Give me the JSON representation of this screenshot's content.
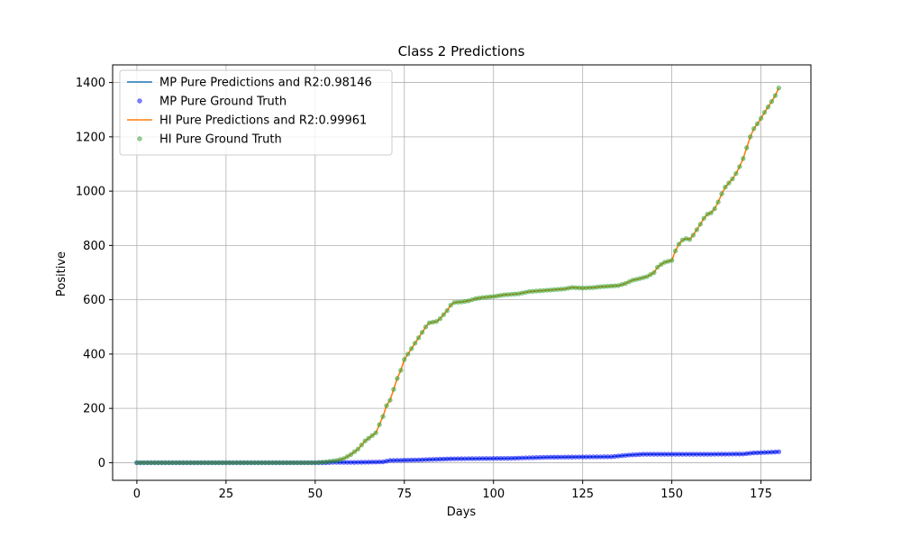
{
  "chart_data": {
    "type": "line",
    "title": "Class 2 Predictions",
    "xlabel": "Days",
    "ylabel": "Positive",
    "xlim": [
      -6.8,
      189
    ],
    "ylim": [
      -65,
      1465
    ],
    "xticks": [
      0,
      25,
      50,
      75,
      100,
      125,
      150,
      175
    ],
    "yticks": [
      0,
      200,
      400,
      600,
      800,
      1000,
      1200,
      1400
    ],
    "grid": true,
    "legend_position": "top-left",
    "series": [
      {
        "name": "MP Pure Predictions and R2:0.98146",
        "kind": "line",
        "color": "#1f77b4",
        "points": [
          [
            0,
            0
          ],
          [
            53,
            0
          ],
          [
            55,
            1
          ],
          [
            60,
            1
          ],
          [
            65,
            2
          ],
          [
            69,
            3
          ],
          [
            71,
            8
          ],
          [
            75,
            9
          ],
          [
            79,
            10
          ],
          [
            83,
            12
          ],
          [
            88,
            14
          ],
          [
            95,
            15
          ],
          [
            105,
            16
          ],
          [
            110,
            18
          ],
          [
            115,
            20
          ],
          [
            125,
            21
          ],
          [
            133,
            22
          ],
          [
            138,
            28
          ],
          [
            142,
            31
          ],
          [
            150,
            31
          ],
          [
            160,
            31
          ],
          [
            170,
            32
          ],
          [
            173,
            36
          ],
          [
            177,
            38
          ],
          [
            180,
            40
          ]
        ]
      },
      {
        "name": "MP Pure Ground Truth",
        "kind": "scatter",
        "color": "#0000ff",
        "points": [
          [
            0,
            0
          ],
          [
            53,
            0
          ],
          [
            55,
            1
          ],
          [
            60,
            1
          ],
          [
            65,
            2
          ],
          [
            69,
            3
          ],
          [
            71,
            8
          ],
          [
            75,
            9
          ],
          [
            79,
            10
          ],
          [
            83,
            12
          ],
          [
            88,
            14
          ],
          [
            95,
            15
          ],
          [
            105,
            16
          ],
          [
            110,
            18
          ],
          [
            115,
            20
          ],
          [
            125,
            21
          ],
          [
            133,
            22
          ],
          [
            138,
            28
          ],
          [
            142,
            31
          ],
          [
            150,
            31
          ],
          [
            160,
            31
          ],
          [
            170,
            32
          ],
          [
            173,
            36
          ],
          [
            177,
            38
          ],
          [
            180,
            40
          ]
        ]
      },
      {
        "name": "HI Pure Predictions and R2:0.99961",
        "kind": "line",
        "color": "#ff7f0e",
        "points": [
          [
            0,
            0
          ],
          [
            50,
            0
          ],
          [
            53,
            3
          ],
          [
            56,
            8
          ],
          [
            58,
            15
          ],
          [
            60,
            30
          ],
          [
            62,
            50
          ],
          [
            64,
            80
          ],
          [
            66,
            100
          ],
          [
            67,
            110
          ],
          [
            68,
            140
          ],
          [
            69,
            170
          ],
          [
            70,
            210
          ],
          [
            71,
            230
          ],
          [
            72,
            270
          ],
          [
            73,
            310
          ],
          [
            74,
            340
          ],
          [
            75,
            380
          ],
          [
            76,
            400
          ],
          [
            77,
            420
          ],
          [
            78,
            440
          ],
          [
            79,
            460
          ],
          [
            80,
            480
          ],
          [
            81,
            500
          ],
          [
            82,
            515
          ],
          [
            84,
            520
          ],
          [
            85,
            530
          ],
          [
            86,
            545
          ],
          [
            87,
            560
          ],
          [
            88,
            580
          ],
          [
            89,
            590
          ],
          [
            91,
            592
          ],
          [
            93,
            596
          ],
          [
            95,
            604
          ],
          [
            97,
            608
          ],
          [
            100,
            612
          ],
          [
            103,
            618
          ],
          [
            107,
            622
          ],
          [
            110,
            630
          ],
          [
            115,
            635
          ],
          [
            120,
            640
          ],
          [
            122,
            645
          ],
          [
            125,
            643
          ],
          [
            128,
            645
          ],
          [
            130,
            648
          ],
          [
            135,
            652
          ],
          [
            137,
            660
          ],
          [
            139,
            672
          ],
          [
            141,
            678
          ],
          [
            143,
            685
          ],
          [
            145,
            700
          ],
          [
            146,
            720
          ],
          [
            147,
            730
          ],
          [
            148,
            738
          ],
          [
            150,
            745
          ],
          [
            151,
            780
          ],
          [
            152,
            805
          ],
          [
            153,
            820
          ],
          [
            154,
            825
          ],
          [
            155,
            822
          ],
          [
            156,
            838
          ],
          [
            157,
            858
          ],
          [
            158,
            878
          ],
          [
            159,
            900
          ],
          [
            160,
            915
          ],
          [
            161,
            920
          ],
          [
            162,
            935
          ],
          [
            163,
            960
          ],
          [
            164,
            990
          ],
          [
            165,
            1015
          ],
          [
            166,
            1030
          ],
          [
            167,
            1045
          ],
          [
            168,
            1065
          ],
          [
            169,
            1090
          ],
          [
            170,
            1120
          ],
          [
            171,
            1160
          ],
          [
            172,
            1200
          ],
          [
            173,
            1230
          ],
          [
            174,
            1248
          ],
          [
            175,
            1268
          ],
          [
            176,
            1290
          ],
          [
            177,
            1310
          ],
          [
            178,
            1330
          ],
          [
            179,
            1352
          ],
          [
            180,
            1380
          ]
        ]
      },
      {
        "name": "HI Pure Ground Truth",
        "kind": "scatter",
        "color": "#2ca02c",
        "points": [
          [
            0,
            0
          ],
          [
            50,
            0
          ],
          [
            53,
            3
          ],
          [
            56,
            8
          ],
          [
            58,
            15
          ],
          [
            60,
            30
          ],
          [
            62,
            50
          ],
          [
            64,
            80
          ],
          [
            66,
            100
          ],
          [
            67,
            110
          ],
          [
            68,
            140
          ],
          [
            69,
            170
          ],
          [
            70,
            210
          ],
          [
            71,
            230
          ],
          [
            72,
            270
          ],
          [
            73,
            310
          ],
          [
            74,
            340
          ],
          [
            75,
            380
          ],
          [
            76,
            400
          ],
          [
            77,
            420
          ],
          [
            78,
            440
          ],
          [
            79,
            460
          ],
          [
            80,
            480
          ],
          [
            81,
            500
          ],
          [
            82,
            515
          ],
          [
            84,
            520
          ],
          [
            85,
            530
          ],
          [
            86,
            545
          ],
          [
            87,
            560
          ],
          [
            88,
            580
          ],
          [
            89,
            590
          ],
          [
            91,
            592
          ],
          [
            93,
            596
          ],
          [
            95,
            604
          ],
          [
            97,
            608
          ],
          [
            100,
            612
          ],
          [
            103,
            618
          ],
          [
            107,
            622
          ],
          [
            110,
            630
          ],
          [
            115,
            635
          ],
          [
            120,
            640
          ],
          [
            122,
            645
          ],
          [
            125,
            643
          ],
          [
            128,
            645
          ],
          [
            130,
            648
          ],
          [
            135,
            652
          ],
          [
            137,
            660
          ],
          [
            139,
            672
          ],
          [
            141,
            678
          ],
          [
            143,
            685
          ],
          [
            145,
            700
          ],
          [
            146,
            720
          ],
          [
            147,
            730
          ],
          [
            148,
            738
          ],
          [
            150,
            745
          ],
          [
            151,
            780
          ],
          [
            152,
            805
          ],
          [
            153,
            820
          ],
          [
            154,
            825
          ],
          [
            155,
            822
          ],
          [
            156,
            838
          ],
          [
            157,
            858
          ],
          [
            158,
            878
          ],
          [
            159,
            900
          ],
          [
            160,
            915
          ],
          [
            161,
            920
          ],
          [
            162,
            935
          ],
          [
            163,
            960
          ],
          [
            164,
            990
          ],
          [
            165,
            1015
          ],
          [
            166,
            1030
          ],
          [
            167,
            1045
          ],
          [
            168,
            1065
          ],
          [
            169,
            1090
          ],
          [
            170,
            1120
          ],
          [
            171,
            1160
          ],
          [
            172,
            1200
          ],
          [
            173,
            1230
          ],
          [
            174,
            1248
          ],
          [
            175,
            1268
          ],
          [
            176,
            1290
          ],
          [
            177,
            1310
          ],
          [
            178,
            1330
          ],
          [
            179,
            1352
          ],
          [
            180,
            1380
          ]
        ]
      }
    ]
  }
}
